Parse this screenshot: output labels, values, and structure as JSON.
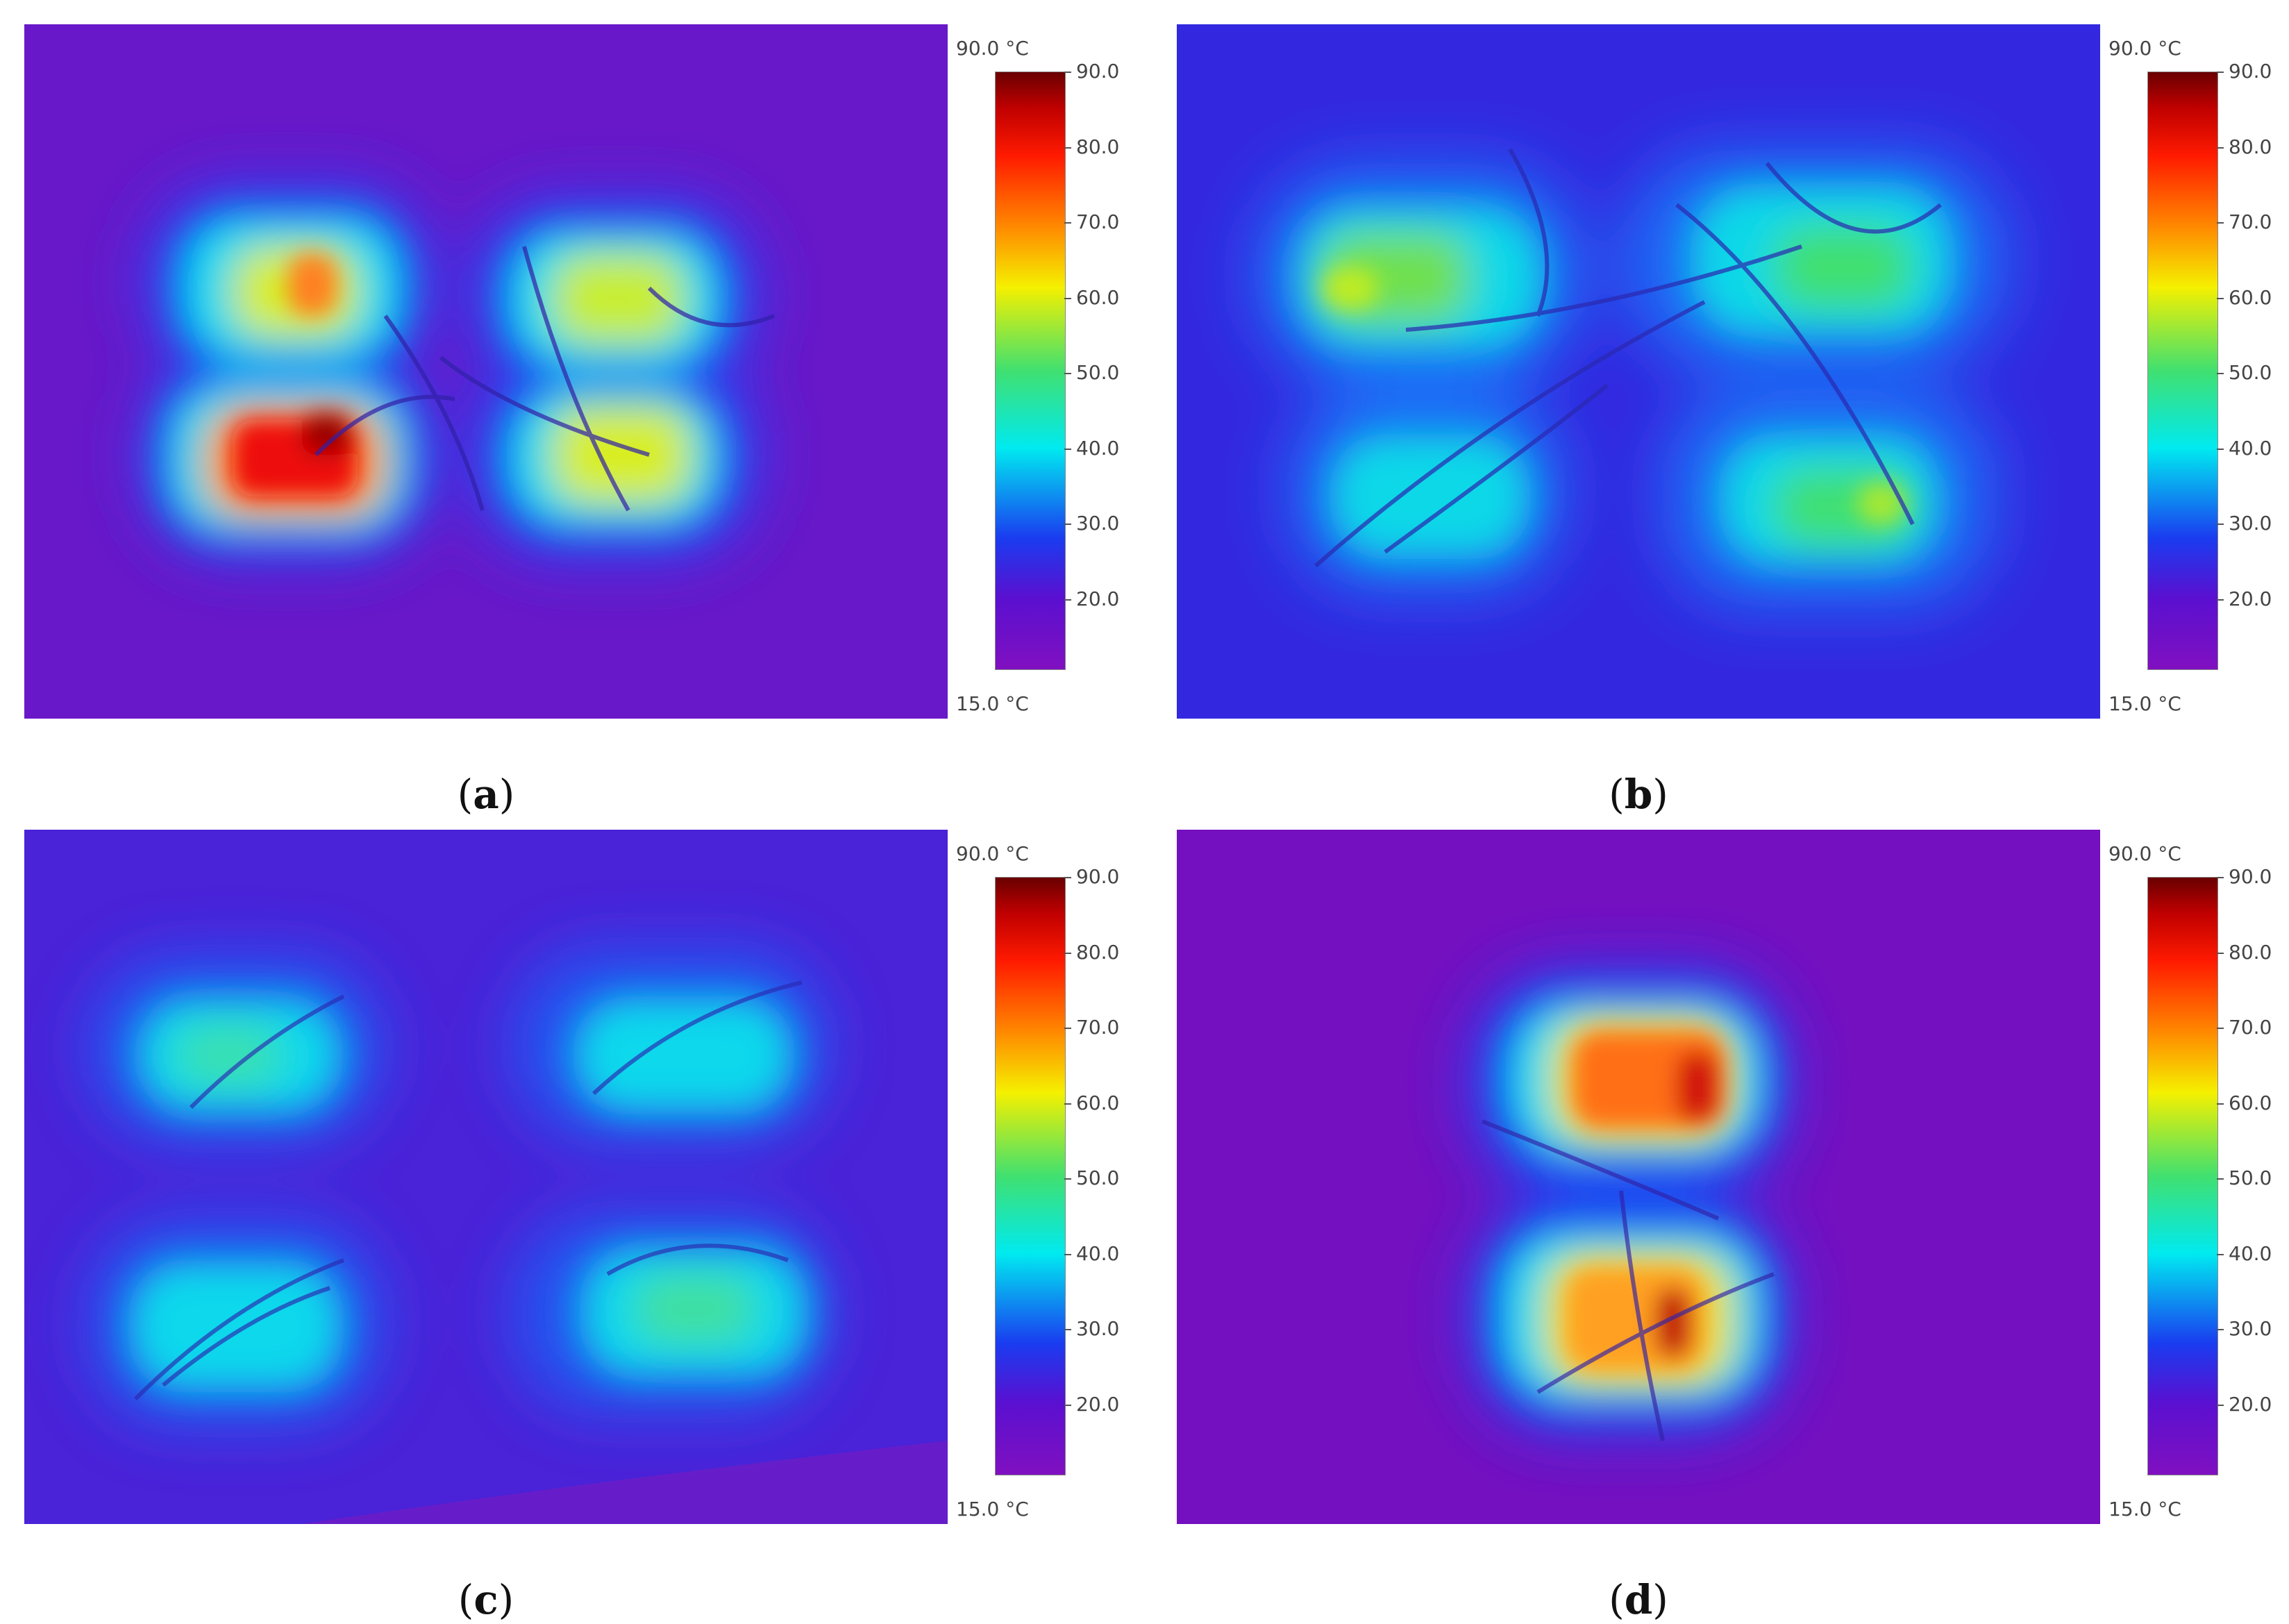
{
  "colors": {
    "background": "#7b10c8",
    "cool_blue": "#3a2ee0",
    "cyan": "#00e0f0",
    "green": "#58e070",
    "yellow": "#f0ee10",
    "orange": "#ff8020",
    "red": "#f01010",
    "dark_red": "#8a0000"
  },
  "panels": [
    {
      "id": "a",
      "caption_letter": "a",
      "scale_max_label": "90.0 °C",
      "scale_min_label": "15.0 °C",
      "ticks": [
        "90.0",
        "80.0",
        "70.0",
        "60.0",
        "50.0",
        "40.0",
        "30.0",
        "20.0"
      ]
    },
    {
      "id": "b",
      "caption_letter": "b",
      "scale_max_label": "90.0 °C",
      "scale_min_label": "15.0 °C",
      "ticks": [
        "90.0",
        "80.0",
        "70.0",
        "60.0",
        "50.0",
        "40.0",
        "30.0",
        "20.0"
      ]
    },
    {
      "id": "c",
      "caption_letter": "c",
      "scale_max_label": "90.0 °C",
      "scale_min_label": "15.0 °C",
      "ticks": [
        "90.0",
        "80.0",
        "70.0",
        "60.0",
        "50.0",
        "40.0",
        "30.0",
        "20.0"
      ]
    },
    {
      "id": "d",
      "caption_letter": "d",
      "scale_max_label": "90.0 °C",
      "scale_min_label": "15.0 °C",
      "ticks": [
        "90.0",
        "80.0",
        "70.0",
        "60.0",
        "50.0",
        "40.0",
        "30.0",
        "20.0"
      ]
    }
  ]
}
